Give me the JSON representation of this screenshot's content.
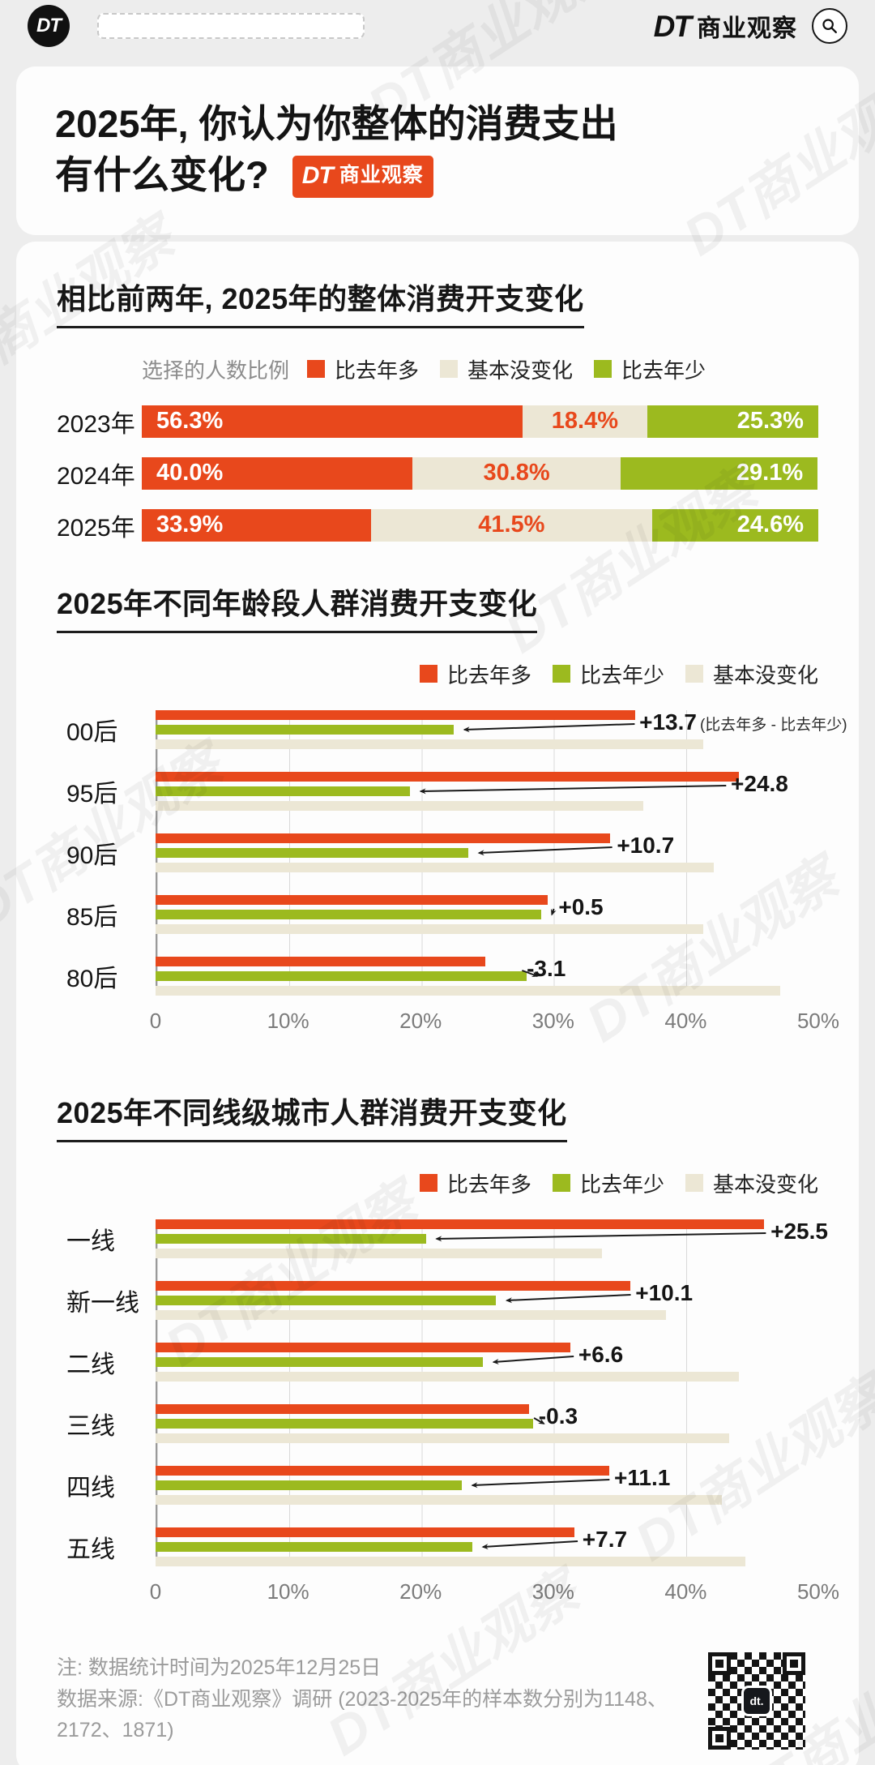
{
  "watermark": "DT商业观察",
  "colors": {
    "more": "#e8481c",
    "less": "#9cba1f",
    "same": "#ece7d5"
  },
  "topbar": {
    "logo": "DT",
    "brand_dt": "DT",
    "brand_name": "商业观察"
  },
  "title_card": {
    "line1": "2025年, 你认为你整体的消费支出",
    "line2": "有什么变化?",
    "badge_dt": "DT",
    "badge_name": "商业观察"
  },
  "chart_data": [
    {
      "type": "bar",
      "variant": "stacked-horizontal",
      "title": "相比前两年, 2025年的整体消费开支变化",
      "legend_label": "选择的人数比例",
      "legend": [
        {
          "name": "比去年多",
          "key": "more"
        },
        {
          "name": "基本没变化",
          "key": "same"
        },
        {
          "name": "比去年少",
          "key": "less"
        }
      ],
      "categories": [
        "2023年",
        "2024年",
        "2025年"
      ],
      "series": [
        {
          "name": "比去年多",
          "key": "more",
          "values": [
            56.3,
            40.0,
            33.9
          ]
        },
        {
          "name": "基本没变化",
          "key": "same",
          "values": [
            18.4,
            30.8,
            41.5
          ]
        },
        {
          "name": "比去年少",
          "key": "less",
          "values": [
            25.3,
            29.1,
            24.6
          ]
        }
      ],
      "unit": "%",
      "xlim": [
        0,
        100
      ]
    },
    {
      "type": "bar",
      "variant": "grouped-horizontal",
      "title": "2025年不同年龄段人群消费开支变化",
      "legend": [
        {
          "name": "比去年多",
          "key": "more"
        },
        {
          "name": "比去年少",
          "key": "less"
        },
        {
          "name": "基本没变化",
          "key": "same"
        }
      ],
      "categories": [
        "00后",
        "95后",
        "90后",
        "85后",
        "80后"
      ],
      "series": [
        {
          "name": "比去年多",
          "key": "more",
          "values": [
            36.2,
            44.0,
            34.3,
            29.6,
            24.9
          ]
        },
        {
          "name": "比去年少",
          "key": "less",
          "values": [
            22.5,
            19.2,
            23.6,
            29.1,
            28.0
          ]
        },
        {
          "name": "基本没变化",
          "key": "same",
          "values": [
            41.3,
            36.8,
            42.1,
            41.3,
            47.1
          ]
        }
      ],
      "annotations": [
        {
          "label": "+13.7",
          "suffix": "(比去年多 - 比去年少)",
          "x": 36.5
        },
        {
          "label": "+24.8",
          "x": 43.4
        },
        {
          "label": "+10.7",
          "x": 34.8
        },
        {
          "label": "+0.5",
          "x": 30.4
        },
        {
          "label": "-3.1",
          "x": 28.0
        }
      ],
      "x_ticks": [
        "0",
        "10%",
        "20%",
        "30%",
        "40%",
        "50%"
      ],
      "xlim": [
        0,
        50
      ],
      "grid": true,
      "legend_position": "top-right"
    },
    {
      "type": "bar",
      "variant": "grouped-horizontal",
      "title": "2025年不同线级城市人群消费开支变化",
      "legend": [
        {
          "name": "比去年多",
          "key": "more"
        },
        {
          "name": "比去年少",
          "key": "less"
        },
        {
          "name": "基本没变化",
          "key": "same"
        }
      ],
      "categories": [
        "一线",
        "新一线",
        "二线",
        "三线",
        "四线",
        "五线"
      ],
      "series": [
        {
          "name": "比去年多",
          "key": "more",
          "values": [
            45.9,
            35.8,
            31.3,
            28.2,
            34.2,
            31.6
          ]
        },
        {
          "name": "比去年少",
          "key": "less",
          "values": [
            20.4,
            25.7,
            24.7,
            28.5,
            23.1,
            23.9
          ]
        },
        {
          "name": "基本没变化",
          "key": "same",
          "values": [
            33.7,
            38.5,
            44.0,
            43.3,
            42.7,
            44.5
          ]
        }
      ],
      "annotations": [
        {
          "label": "+25.5",
          "x": 46.4
        },
        {
          "label": "+10.1",
          "x": 36.2
        },
        {
          "label": "+6.6",
          "x": 31.9
        },
        {
          "label": "-0.3",
          "x": 28.9
        },
        {
          "label": "+11.1",
          "x": 34.6
        },
        {
          "label": "+7.7",
          "x": 32.2
        }
      ],
      "x_ticks": [
        "0",
        "10%",
        "20%",
        "30%",
        "40%",
        "50%"
      ],
      "xlim": [
        0,
        50
      ],
      "grid": true,
      "legend_position": "top-right"
    }
  ],
  "footer": {
    "note1": "注: 数据统计时间为2025年12月25日",
    "note2": "数据来源:《DT商业观察》调研 (2023-2025年的样本数分别为1148、2172、1871)",
    "qr_center": "dt."
  }
}
